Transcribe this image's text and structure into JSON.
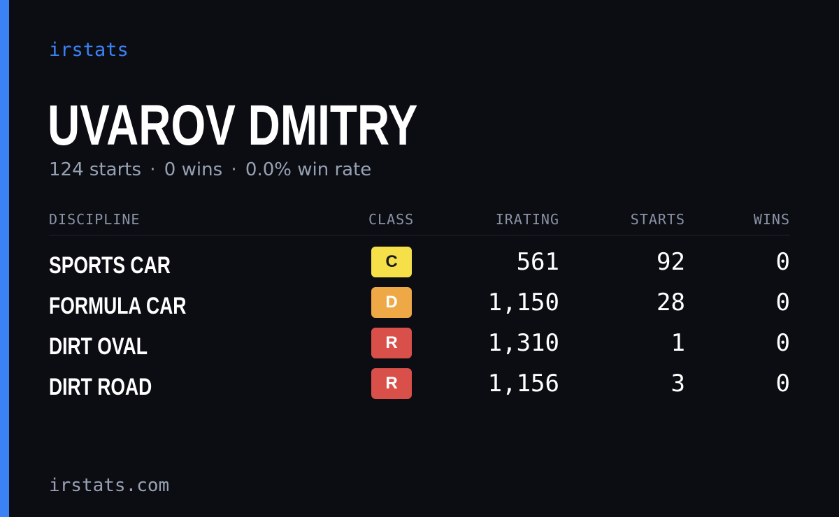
{
  "brand": "irstats",
  "driver": {
    "name": "UVAROV DMITRY",
    "starts": "124 starts",
    "wins": "0 wins",
    "win_rate": "0.0% win rate",
    "separator": "·"
  },
  "table": {
    "headers": {
      "discipline": "DISCIPLINE",
      "class": "CLASS",
      "irating": "IRATING",
      "starts": "STARTS",
      "wins": "WINS"
    },
    "rows": [
      {
        "discipline": "SPORTS CAR",
        "class": "C",
        "class_color": "#f5e04a",
        "class_text_color": "#1a1a1a",
        "irating": "561",
        "starts": "92",
        "wins": "0"
      },
      {
        "discipline": "FORMULA CAR",
        "class": "D",
        "class_color": "#eea845",
        "class_text_color": "#ffffff",
        "irating": "1,150",
        "starts": "28",
        "wins": "0"
      },
      {
        "discipline": "DIRT OVAL",
        "class": "R",
        "class_color": "#d9504a",
        "class_text_color": "#ffffff",
        "irating": "1,310",
        "starts": "1",
        "wins": "0"
      },
      {
        "discipline": "DIRT ROAD",
        "class": "R",
        "class_color": "#d9504a",
        "class_text_color": "#ffffff",
        "irating": "1,156",
        "starts": "3",
        "wins": "0"
      }
    ]
  },
  "footer": "irstats.com",
  "colors": {
    "accent": "#3b82f6",
    "background": "#0b0d13"
  }
}
